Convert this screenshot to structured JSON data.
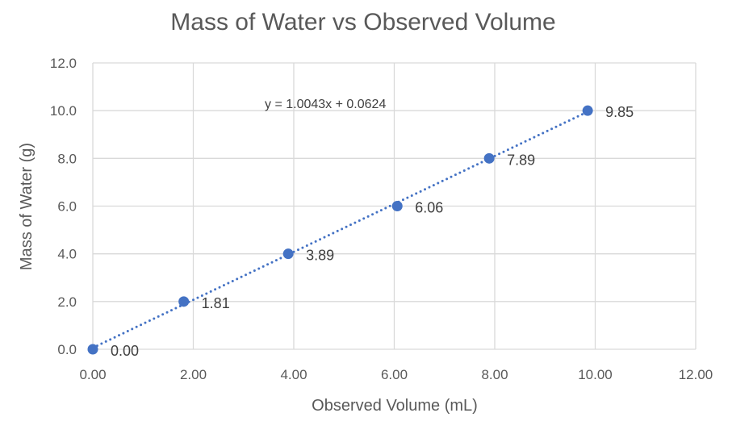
{
  "chart_data": {
    "type": "scatter",
    "title": "Mass of Water vs Observed Volume",
    "xlabel": "Observed Volume (mL)",
    "ylabel": "Mass of Water (g)",
    "xlim": [
      0,
      12
    ],
    "ylim": [
      0,
      12
    ],
    "x_ticks": [
      "0.00",
      "2.00",
      "4.00",
      "6.00",
      "8.00",
      "10.00",
      "12.00"
    ],
    "y_ticks": [
      "0.0",
      "2.0",
      "4.0",
      "6.0",
      "8.0",
      "10.0",
      "12.0"
    ],
    "grid": true,
    "legend": "none",
    "series": [
      {
        "x": [
          0.0,
          1.81,
          3.89,
          6.06,
          7.89,
          9.85
        ],
        "y": [
          0,
          2,
          4,
          6,
          8,
          10
        ],
        "data_labels": [
          "0.00",
          "1.81",
          "3.89",
          "6.06",
          "7.89",
          "9.85"
        ],
        "color": "#4472C4"
      }
    ],
    "trendline": {
      "type": "linear",
      "slope": 1.0043,
      "intercept": 0.0624,
      "equation": "y = 1.0043x + 0.0624",
      "style": "dotted",
      "color": "#4472C4"
    }
  }
}
